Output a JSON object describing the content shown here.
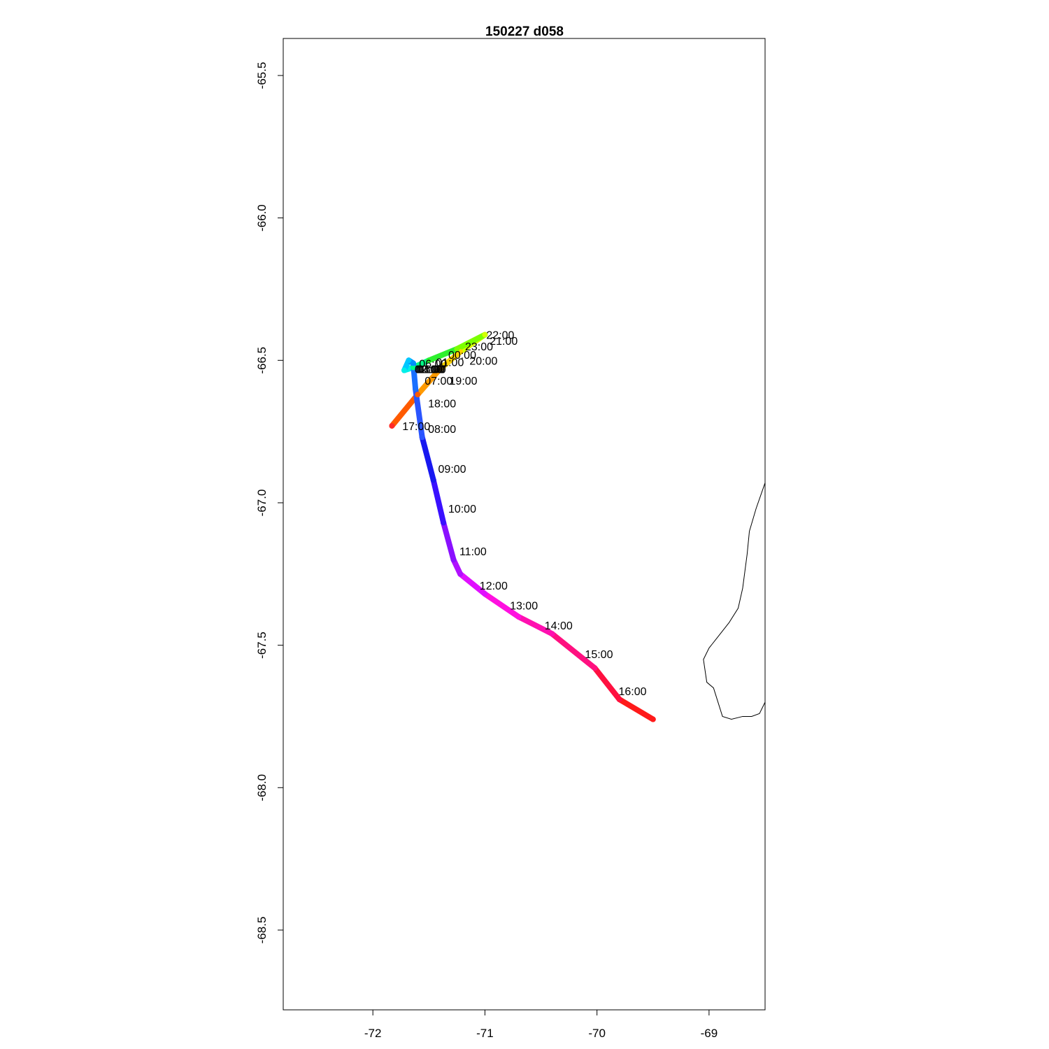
{
  "title": "150227   d058",
  "chart_data": {
    "type": "line",
    "title": "150227   d058",
    "xlabel": "",
    "ylabel": "",
    "xlim": [
      -72.8,
      -68.5
    ],
    "ylim": [
      -68.78,
      -65.37
    ],
    "x_ticks": [
      -72,
      -71,
      -70,
      -69
    ],
    "y_ticks": [
      -65.5,
      -66.0,
      -66.5,
      -67.0,
      -67.5,
      -68.0,
      -68.5
    ],
    "x_tick_labels": [
      "-72",
      "-71",
      "-70",
      "-69"
    ],
    "y_tick_labels": [
      "-65.5",
      "-66.0",
      "-66.5",
      "-67.0",
      "-67.5",
      "-68.0",
      "-68.5"
    ],
    "grid": false,
    "legend": "none",
    "track_color_scale": "rainbow by hour",
    "track": [
      {
        "lon": -71.83,
        "lat": -66.73,
        "color": "#ff2a2a"
      },
      {
        "lon": -71.6,
        "lat": -66.62,
        "color": "#ff5a00"
      },
      {
        "lon": -71.4,
        "lat": -66.53,
        "color": "#ff9a00"
      },
      {
        "lon": -71.22,
        "lat": -66.47,
        "color": "#ffd400"
      },
      {
        "lon": -71.0,
        "lat": -66.41,
        "color": "#d4ff00"
      },
      {
        "lon": -71.25,
        "lat": -66.46,
        "color": "#7cff00"
      },
      {
        "lon": -71.5,
        "lat": -66.5,
        "color": "#2ef02e"
      },
      {
        "lon": -71.64,
        "lat": -66.525,
        "color": "#00ff88"
      },
      {
        "lon": -71.72,
        "lat": -66.535,
        "color": "#00f0e8"
      },
      {
        "lon": -71.68,
        "lat": -66.5,
        "color": "#00c8ff"
      },
      {
        "lon": -71.64,
        "lat": -66.51,
        "color": "#0090ff"
      },
      {
        "lon": -71.62,
        "lat": -66.6,
        "color": "#1a70ff"
      },
      {
        "lon": -71.56,
        "lat": -66.77,
        "color": "#2a55ff"
      },
      {
        "lon": -71.46,
        "lat": -66.92,
        "color": "#1818f0"
      },
      {
        "lon": -71.37,
        "lat": -67.07,
        "color": "#3a10ff"
      },
      {
        "lon": -71.28,
        "lat": -67.2,
        "color": "#8a10ff"
      },
      {
        "lon": -71.22,
        "lat": -67.25,
        "color": "#b010ff"
      },
      {
        "lon": -71.0,
        "lat": -67.32,
        "color": "#e010ff"
      },
      {
        "lon": -70.7,
        "lat": -67.4,
        "color": "#ff10e0"
      },
      {
        "lon": -70.4,
        "lat": -67.46,
        "color": "#ff10b0"
      },
      {
        "lon": -70.02,
        "lat": -67.58,
        "color": "#ff1080"
      },
      {
        "lon": -69.8,
        "lat": -67.69,
        "color": "#ff1040"
      },
      {
        "lon": -69.5,
        "lat": -67.76,
        "color": "#ff1a1a"
      }
    ],
    "hour_labels": [
      {
        "text": "22:00",
        "lon": -71.0,
        "lat": -66.41
      },
      {
        "text": "21:00",
        "lon": -70.97,
        "lat": -66.43
      },
      {
        "text": "23:00",
        "lon": -71.19,
        "lat": -66.45
      },
      {
        "text": "00:00",
        "lon": -71.34,
        "lat": -66.48
      },
      {
        "text": "20:00",
        "lon": -71.15,
        "lat": -66.5
      },
      {
        "text": "01:00",
        "lon": -71.45,
        "lat": -66.505
      },
      {
        "text": "06:00",
        "lon": -71.6,
        "lat": -66.51
      },
      {
        "text": "02:00",
        "lon": -71.64,
        "lat": -66.53
      },
      {
        "text": "03:00",
        "lon": -71.63,
        "lat": -66.53
      },
      {
        "text": "04:00",
        "lon": -71.62,
        "lat": -66.53
      },
      {
        "text": "05:00",
        "lon": -71.61,
        "lat": -66.53
      },
      {
        "text": "07:00",
        "lon": -71.55,
        "lat": -66.57
      },
      {
        "text": "19:00",
        "lon": -71.33,
        "lat": -66.57
      },
      {
        "text": "18:00",
        "lon": -71.52,
        "lat": -66.65
      },
      {
        "text": "17:00",
        "lon": -71.75,
        "lat": -66.73
      },
      {
        "text": "08:00",
        "lon": -71.52,
        "lat": -66.74
      },
      {
        "text": "09:00",
        "lon": -71.43,
        "lat": -66.88
      },
      {
        "text": "10:00",
        "lon": -71.34,
        "lat": -67.02
      },
      {
        "text": "11:00",
        "lon": -71.24,
        "lat": -67.17
      },
      {
        "text": "12:00",
        "lon": -71.06,
        "lat": -67.29
      },
      {
        "text": "13:00",
        "lon": -70.79,
        "lat": -67.36
      },
      {
        "text": "14:00",
        "lon": -70.48,
        "lat": -67.43
      },
      {
        "text": "15:00",
        "lon": -70.12,
        "lat": -67.53
      },
      {
        "text": "16:00",
        "lon": -69.82,
        "lat": -67.66
      }
    ],
    "coastline": [
      [
        -68.5,
        -66.93
      ],
      [
        -68.58,
        -67.02
      ],
      [
        -68.64,
        -67.1
      ],
      [
        -68.66,
        -67.18
      ],
      [
        -68.7,
        -67.3
      ],
      [
        -68.74,
        -67.37
      ],
      [
        -68.82,
        -67.42
      ],
      [
        -68.92,
        -67.47
      ],
      [
        -69.0,
        -67.51
      ],
      [
        -69.05,
        -67.55
      ],
      [
        -69.02,
        -67.63
      ],
      [
        -68.96,
        -67.65
      ],
      [
        -68.92,
        -67.7
      ],
      [
        -68.88,
        -67.75
      ],
      [
        -68.8,
        -67.76
      ],
      [
        -68.7,
        -67.75
      ],
      [
        -68.62,
        -67.75
      ],
      [
        -68.55,
        -67.74
      ],
      [
        -68.5,
        -67.7
      ]
    ]
  }
}
